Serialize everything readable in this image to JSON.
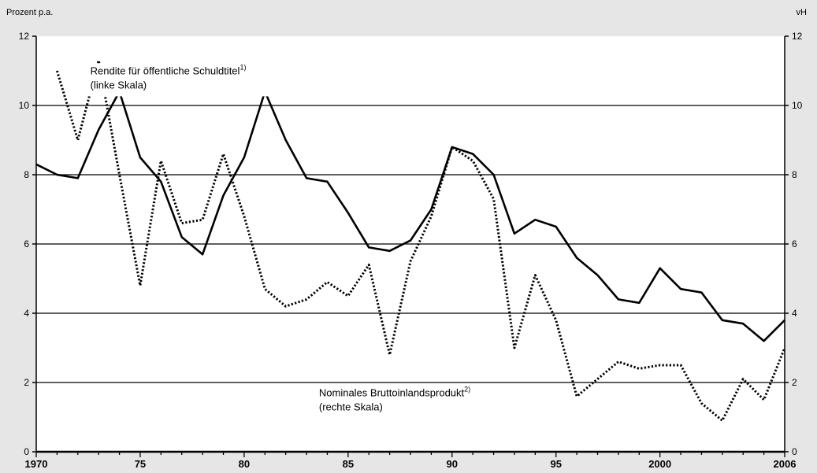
{
  "chart_data": {
    "type": "line",
    "y_unit_left": "Prozent p.a.",
    "y_unit_right": "vH",
    "ylim": [
      0,
      12
    ],
    "y_ticks": [
      0,
      2,
      4,
      6,
      8,
      10,
      12
    ],
    "xlim": [
      1970,
      2006
    ],
    "x_tick_values": [
      1970,
      1975,
      1980,
      1985,
      1990,
      1995,
      2000,
      2006
    ],
    "x_tick_labels": [
      "1970",
      "75",
      "80",
      "85",
      "90",
      "95",
      "2000",
      "2006"
    ],
    "grid": "horizontal",
    "series": [
      {
        "x": [
          1970,
          1971,
          1972,
          1973,
          1974,
          1975,
          1976,
          1977,
          1978,
          1979,
          1980,
          1981,
          1982,
          1983,
          1984,
          1985,
          1986,
          1987,
          1988,
          1989,
          1990,
          1991,
          1992,
          1993,
          1994,
          1995,
          1996,
          1997,
          1998,
          1999,
          2000,
          2001,
          2002,
          2003,
          2004,
          2005,
          2006
        ],
        "values": [
          8.3,
          8.0,
          7.9,
          9.3,
          10.4,
          8.5,
          7.8,
          6.2,
          5.7,
          7.4,
          8.5,
          10.4,
          9.0,
          7.9,
          7.8,
          6.9,
          5.9,
          5.8,
          6.1,
          7.0,
          8.8,
          8.6,
          8.0,
          6.3,
          6.7,
          6.5,
          5.6,
          5.1,
          4.4,
          4.3,
          5.3,
          4.7,
          4.6,
          3.8,
          3.7,
          3.2,
          3.8
        ],
        "style": "solid",
        "color": "#000000"
      },
      {
        "x": [
          1971,
          1972,
          1973,
          1974,
          1975,
          1976,
          1977,
          1978,
          1979,
          1980,
          1981,
          1982,
          1983,
          1984,
          1985,
          1986,
          1987,
          1988,
          1989,
          1990,
          1991,
          1992,
          1993,
          1994,
          1995,
          1996,
          1997,
          1998,
          1999,
          2000,
          2001,
          2002,
          2003,
          2004,
          2005,
          2006
        ],
        "values": [
          11.0,
          9.0,
          11.3,
          8.0,
          4.8,
          8.4,
          6.6,
          6.7,
          8.6,
          6.8,
          4.7,
          4.2,
          4.4,
          4.9,
          4.5,
          5.4,
          2.8,
          5.5,
          6.8,
          8.8,
          8.4,
          7.3,
          3.0,
          5.1,
          3.8,
          1.6,
          2.1,
          2.6,
          2.4,
          2.5,
          2.5,
          1.4,
          0.9,
          2.1,
          1.5,
          3.0
        ],
        "style": "dotted",
        "color": "#000000"
      }
    ],
    "annotations": [
      {
        "lines": [
          "Rendite für öffentliche Schuldtitel",
          "(linke Skala)"
        ],
        "sup": "1)",
        "x": 1972.6,
        "y": 10.9
      },
      {
        "lines": [
          "Nominales Bruttoinlandsprodukt",
          "(rechte Skala)"
        ],
        "sup": "2)",
        "x": 1983.6,
        "y": 1.6
      }
    ]
  }
}
